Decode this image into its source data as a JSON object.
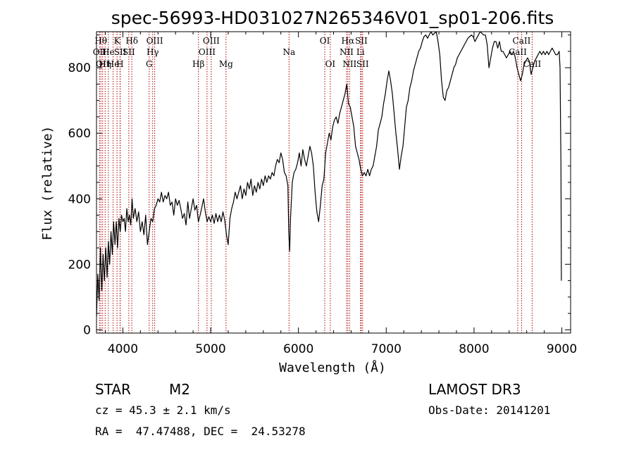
{
  "chart_data": {
    "type": "line",
    "title": "spec-56993-HD031027N265346V01_sp01-206.fits",
    "xlabel": "Wavelength (Å)",
    "ylabel": "Flux (relative)",
    "xlim": [
      3700,
      9100
    ],
    "ylim": [
      -10,
      910
    ],
    "xticks": [
      4000,
      5000,
      6000,
      7000,
      8000,
      9000
    ],
    "yticks": [
      0,
      200,
      400,
      600,
      800
    ],
    "grid": false,
    "series": [
      {
        "points": [
          [
            3700,
            40
          ],
          [
            3715,
            170
          ],
          [
            3730,
            90
          ],
          [
            3745,
            250
          ],
          [
            3760,
            120
          ],
          [
            3775,
            230
          ],
          [
            3790,
            150
          ],
          [
            3805,
            250
          ],
          [
            3820,
            160
          ],
          [
            3835,
            270
          ],
          [
            3850,
            200
          ],
          [
            3865,
            300
          ],
          [
            3880,
            230
          ],
          [
            3895,
            330
          ],
          [
            3910,
            260
          ],
          [
            3925,
            330
          ],
          [
            3940,
            250
          ],
          [
            3955,
            340
          ],
          [
            3970,
            300
          ],
          [
            3985,
            350
          ],
          [
            4000,
            330
          ],
          [
            4015,
            340
          ],
          [
            4030,
            300
          ],
          [
            4045,
            370
          ],
          [
            4060,
            330
          ],
          [
            4075,
            350
          ],
          [
            4090,
            320
          ],
          [
            4105,
            400
          ],
          [
            4120,
            340
          ],
          [
            4140,
            370
          ],
          [
            4160,
            330
          ],
          [
            4180,
            360
          ],
          [
            4200,
            300
          ],
          [
            4220,
            330
          ],
          [
            4240,
            290
          ],
          [
            4260,
            350
          ],
          [
            4280,
            260
          ],
          [
            4300,
            300
          ],
          [
            4320,
            340
          ],
          [
            4340,
            330
          ],
          [
            4360,
            370
          ],
          [
            4380,
            380
          ],
          [
            4400,
            400
          ],
          [
            4420,
            390
          ],
          [
            4440,
            420
          ],
          [
            4460,
            390
          ],
          [
            4480,
            410
          ],
          [
            4500,
            400
          ],
          [
            4520,
            420
          ],
          [
            4540,
            380
          ],
          [
            4560,
            390
          ],
          [
            4580,
            350
          ],
          [
            4600,
            400
          ],
          [
            4620,
            380
          ],
          [
            4640,
            395
          ],
          [
            4660,
            370
          ],
          [
            4680,
            340
          ],
          [
            4700,
            355
          ],
          [
            4720,
            320
          ],
          [
            4740,
            390
          ],
          [
            4760,
            340
          ],
          [
            4780,
            370
          ],
          [
            4800,
            400
          ],
          [
            4820,
            365
          ],
          [
            4840,
            380
          ],
          [
            4860,
            330
          ],
          [
            4880,
            350
          ],
          [
            4900,
            375
          ],
          [
            4920,
            400
          ],
          [
            4940,
            360
          ],
          [
            4960,
            330
          ],
          [
            4980,
            345
          ],
          [
            5000,
            330
          ],
          [
            5020,
            350
          ],
          [
            5040,
            325
          ],
          [
            5060,
            355
          ],
          [
            5080,
            330
          ],
          [
            5100,
            350
          ],
          [
            5120,
            330
          ],
          [
            5140,
            360
          ],
          [
            5160,
            335
          ],
          [
            5180,
            290
          ],
          [
            5200,
            260
          ],
          [
            5220,
            340
          ],
          [
            5240,
            370
          ],
          [
            5260,
            390
          ],
          [
            5280,
            420
          ],
          [
            5300,
            400
          ],
          [
            5320,
            420
          ],
          [
            5340,
            440
          ],
          [
            5360,
            400
          ],
          [
            5380,
            430
          ],
          [
            5400,
            410
          ],
          [
            5420,
            450
          ],
          [
            5440,
            430
          ],
          [
            5460,
            460
          ],
          [
            5480,
            410
          ],
          [
            5500,
            440
          ],
          [
            5520,
            420
          ],
          [
            5540,
            450
          ],
          [
            5560,
            430
          ],
          [
            5580,
            460
          ],
          [
            5600,
            440
          ],
          [
            5620,
            470
          ],
          [
            5640,
            450
          ],
          [
            5660,
            470
          ],
          [
            5680,
            460
          ],
          [
            5700,
            480
          ],
          [
            5720,
            470
          ],
          [
            5740,
            500
          ],
          [
            5760,
            520
          ],
          [
            5780,
            510
          ],
          [
            5800,
            540
          ],
          [
            5820,
            520
          ],
          [
            5840,
            480
          ],
          [
            5860,
            470
          ],
          [
            5880,
            440
          ],
          [
            5890,
            300
          ],
          [
            5900,
            240
          ],
          [
            5910,
            340
          ],
          [
            5930,
            450
          ],
          [
            5950,
            480
          ],
          [
            5970,
            490
          ],
          [
            5990,
            510
          ],
          [
            6010,
            540
          ],
          [
            6030,
            500
          ],
          [
            6050,
            550
          ],
          [
            6070,
            520
          ],
          [
            6090,
            500
          ],
          [
            6110,
            530
          ],
          [
            6130,
            560
          ],
          [
            6150,
            540
          ],
          [
            6170,
            500
          ],
          [
            6190,
            420
          ],
          [
            6210,
            360
          ],
          [
            6230,
            330
          ],
          [
            6250,
            380
          ],
          [
            6270,
            440
          ],
          [
            6290,
            460
          ],
          [
            6310,
            540
          ],
          [
            6330,
            570
          ],
          [
            6350,
            600
          ],
          [
            6370,
            580
          ],
          [
            6390,
            620
          ],
          [
            6410,
            640
          ],
          [
            6430,
            650
          ],
          [
            6450,
            630
          ],
          [
            6470,
            660
          ],
          [
            6490,
            680
          ],
          [
            6510,
            700
          ],
          [
            6530,
            720
          ],
          [
            6550,
            750
          ],
          [
            6570,
            690
          ],
          [
            6590,
            680
          ],
          [
            6610,
            650
          ],
          [
            6630,
            620
          ],
          [
            6650,
            560
          ],
          [
            6670,
            540
          ],
          [
            6690,
            520
          ],
          [
            6710,
            490
          ],
          [
            6730,
            470
          ],
          [
            6750,
            480
          ],
          [
            6770,
            470
          ],
          [
            6790,
            490
          ],
          [
            6810,
            470
          ],
          [
            6830,
            490
          ],
          [
            6850,
            500
          ],
          [
            6870,
            530
          ],
          [
            6890,
            560
          ],
          [
            6910,
            610
          ],
          [
            6930,
            630
          ],
          [
            6950,
            650
          ],
          [
            6970,
            690
          ],
          [
            6990,
            720
          ],
          [
            7010,
            760
          ],
          [
            7030,
            790
          ],
          [
            7050,
            760
          ],
          [
            7070,
            720
          ],
          [
            7090,
            660
          ],
          [
            7110,
            600
          ],
          [
            7130,
            550
          ],
          [
            7150,
            490
          ],
          [
            7170,
            530
          ],
          [
            7190,
            560
          ],
          [
            7210,
            620
          ],
          [
            7230,
            680
          ],
          [
            7250,
            700
          ],
          [
            7270,
            740
          ],
          [
            7290,
            760
          ],
          [
            7310,
            790
          ],
          [
            7330,
            810
          ],
          [
            7350,
            830
          ],
          [
            7370,
            850
          ],
          [
            7390,
            860
          ],
          [
            7410,
            880
          ],
          [
            7430,
            895
          ],
          [
            7450,
            900
          ],
          [
            7470,
            890
          ],
          [
            7490,
            900
          ],
          [
            7510,
            910
          ],
          [
            7530,
            900
          ],
          [
            7550,
            905
          ],
          [
            7570,
            910
          ],
          [
            7590,
            880
          ],
          [
            7610,
            840
          ],
          [
            7630,
            760
          ],
          [
            7650,
            710
          ],
          [
            7670,
            700
          ],
          [
            7690,
            730
          ],
          [
            7710,
            740
          ],
          [
            7730,
            760
          ],
          [
            7750,
            780
          ],
          [
            7770,
            800
          ],
          [
            7790,
            810
          ],
          [
            7810,
            830
          ],
          [
            7830,
            840
          ],
          [
            7850,
            850
          ],
          [
            7870,
            860
          ],
          [
            7890,
            870
          ],
          [
            7910,
            880
          ],
          [
            7930,
            890
          ],
          [
            7950,
            895
          ],
          [
            7970,
            900
          ],
          [
            7990,
            895
          ],
          [
            8010,
            880
          ],
          [
            8030,
            890
          ],
          [
            8050,
            900
          ],
          [
            8070,
            910
          ],
          [
            8090,
            905
          ],
          [
            8110,
            900
          ],
          [
            8130,
            900
          ],
          [
            8150,
            870
          ],
          [
            8170,
            800
          ],
          [
            8190,
            830
          ],
          [
            8210,
            860
          ],
          [
            8230,
            880
          ],
          [
            8250,
            880
          ],
          [
            8270,
            860
          ],
          [
            8290,
            880
          ],
          [
            8310,
            850
          ],
          [
            8330,
            850
          ],
          [
            8350,
            840
          ],
          [
            8370,
            830
          ],
          [
            8390,
            840
          ],
          [
            8410,
            850
          ],
          [
            8430,
            840
          ],
          [
            8450,
            850
          ],
          [
            8470,
            830
          ],
          [
            8490,
            800
          ],
          [
            8510,
            780
          ],
          [
            8530,
            760
          ],
          [
            8550,
            780
          ],
          [
            8570,
            810
          ],
          [
            8590,
            820
          ],
          [
            8610,
            830
          ],
          [
            8630,
            820
          ],
          [
            8650,
            780
          ],
          [
            8670,
            800
          ],
          [
            8690,
            820
          ],
          [
            8710,
            830
          ],
          [
            8730,
            840
          ],
          [
            8750,
            850
          ],
          [
            8770,
            840
          ],
          [
            8790,
            850
          ],
          [
            8810,
            840
          ],
          [
            8830,
            850
          ],
          [
            8850,
            840
          ],
          [
            8870,
            850
          ],
          [
            8890,
            860
          ],
          [
            8910,
            850
          ],
          [
            8930,
            840
          ],
          [
            8950,
            840
          ],
          [
            8970,
            850
          ],
          [
            8980,
            800
          ],
          [
            8990,
            500
          ],
          [
            8995,
            150
          ]
        ]
      }
    ],
    "line_markers": [
      {
        "x": 3735,
        "label": "OII",
        "row": 2
      },
      {
        "x": 3750,
        "label": "Hθ",
        "row": 1
      },
      {
        "x": 3770,
        "label": "OII",
        "row": 3
      },
      {
        "x": 3798,
        "label": "Hη",
        "row": 3
      },
      {
        "x": 3835,
        "label": "He",
        "row": 2
      },
      {
        "x": 3889,
        "label": "He",
        "row": 3
      },
      {
        "x": 3934,
        "label": "K",
        "row": 1
      },
      {
        "x": 3968,
        "label": "H",
        "row": 3
      },
      {
        "x": 3970,
        "label": "SII",
        "row": 2
      },
      {
        "x": 4102,
        "label": "Hδ",
        "row": 1
      },
      {
        "x": 4068,
        "label": "SII",
        "row": 2
      },
      {
        "x": 4300,
        "label": "G",
        "row": 3
      },
      {
        "x": 4340,
        "label": "Hγ",
        "row": 2
      },
      {
        "x": 4363,
        "label": "OIII",
        "row": 1
      },
      {
        "x": 4861,
        "label": "Hβ",
        "row": 3
      },
      {
        "x": 4959,
        "label": "OIII",
        "row": 2
      },
      {
        "x": 5007,
        "label": "OIII",
        "row": 1
      },
      {
        "x": 5175,
        "label": "Mg",
        "row": 3
      },
      {
        "x": 5893,
        "label": "Na",
        "row": 2
      },
      {
        "x": 6300,
        "label": "OI",
        "row": 1
      },
      {
        "x": 6363,
        "label": "OI",
        "row": 3
      },
      {
        "x": 6548,
        "label": "NII",
        "row": 2
      },
      {
        "x": 6563,
        "label": "Hα",
        "row": 1
      },
      {
        "x": 6583,
        "label": "NII",
        "row": 3
      },
      {
        "x": 6707,
        "label": "Li",
        "row": 2
      },
      {
        "x": 6716,
        "label": "SII",
        "row": 1
      },
      {
        "x": 6731,
        "label": "SII",
        "row": 3
      },
      {
        "x": 8498,
        "label": "CaII",
        "row": 2
      },
      {
        "x": 8542,
        "label": "CaII",
        "row": 1
      },
      {
        "x": 8662,
        "label": "CaII",
        "row": 3
      }
    ]
  },
  "info": {
    "object_class": "STAR",
    "subclass": "M2",
    "survey": "LAMOST DR3",
    "cz": "cz = 45.3 ± 2.1 km/s",
    "obs_date": "Obs-Date: 20141201",
    "coords": "RA =  47.47488, DEC =  24.53278"
  }
}
